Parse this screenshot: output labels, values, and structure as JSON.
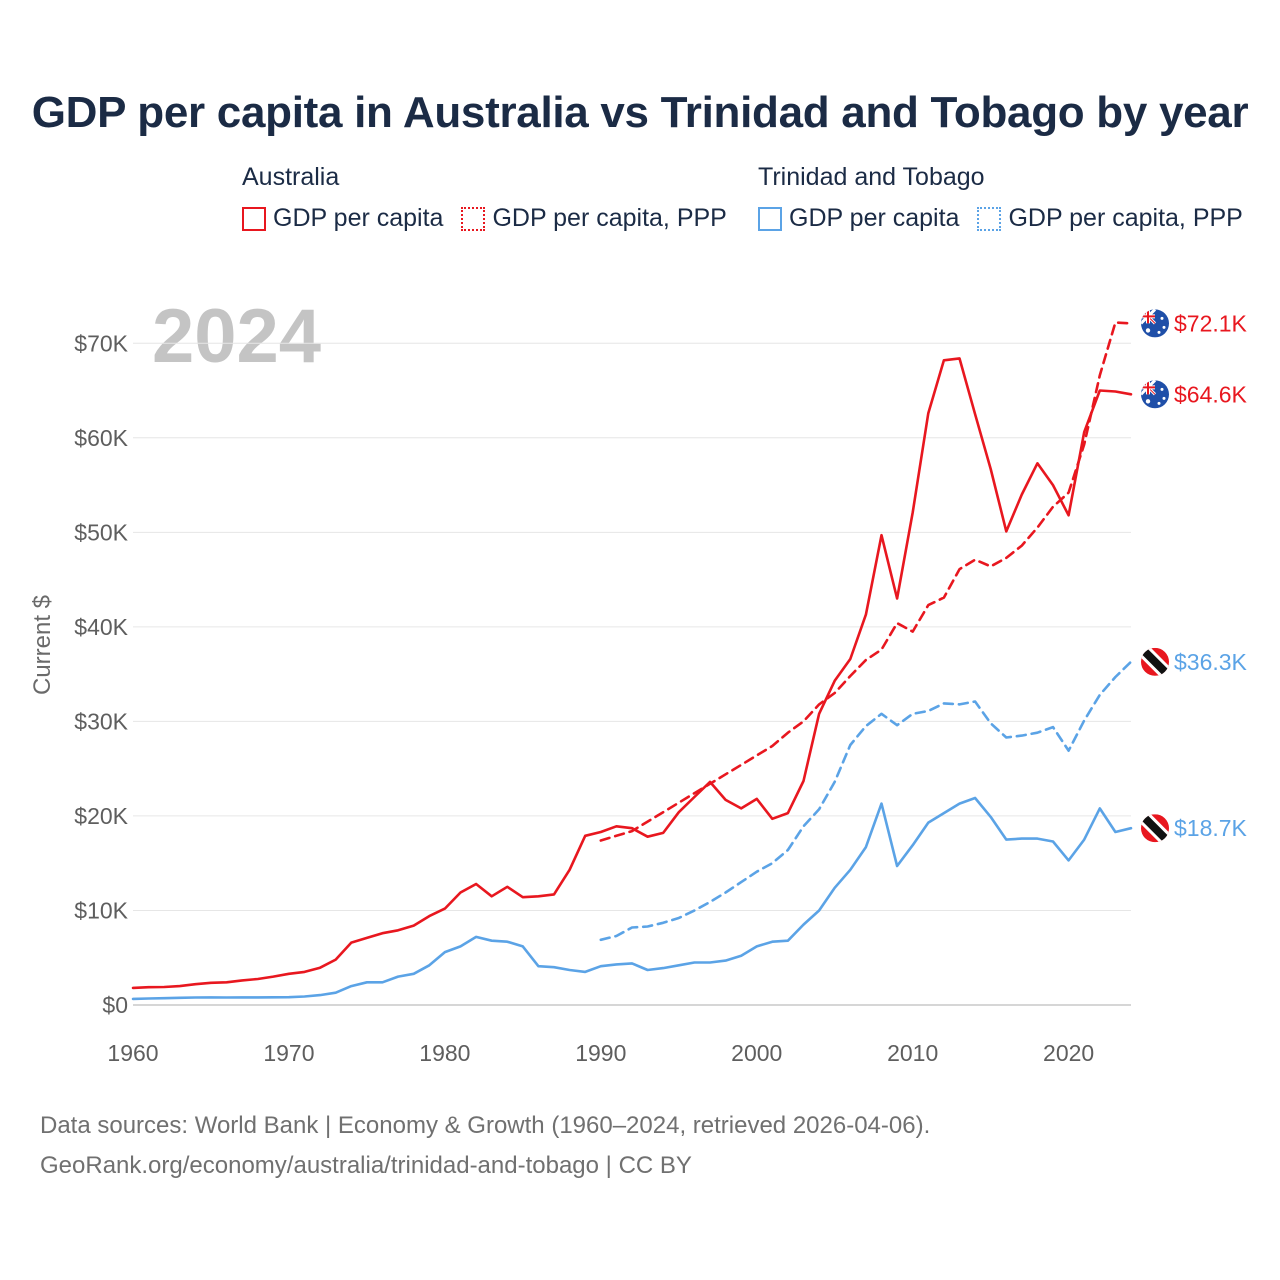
{
  "title": "GDP per capita in Australia vs Trinidad and Tobago by year",
  "year_label": "2024",
  "legend": {
    "groups": [
      {
        "name": "Australia",
        "color": "#e8171f",
        "items": [
          {
            "label": "GDP per capita",
            "style": "solid"
          },
          {
            "label": "GDP per capita, PPP",
            "style": "dotted"
          }
        ]
      },
      {
        "name": "Trinidad and Tobago",
        "color": "#5ba3e6",
        "items": [
          {
            "label": "GDP per capita",
            "style": "solid"
          },
          {
            "label": "GDP per capita, PPP",
            "style": "dotted"
          }
        ]
      }
    ]
  },
  "chart_data": {
    "type": "line",
    "title": "GDP per capita in Australia vs Trinidad and Tobago by year",
    "xlabel": "",
    "ylabel": "Current $",
    "xlim": [
      1960,
      2024
    ],
    "ylim": [
      0,
      75000
    ],
    "x_ticks": [
      1960,
      1970,
      1980,
      1990,
      2000,
      2010,
      2020
    ],
    "x_tick_labels": [
      "1960",
      "1970",
      "1980",
      "1990",
      "2000",
      "2010",
      "2020"
    ],
    "y_ticks": [
      0,
      10000,
      20000,
      30000,
      40000,
      50000,
      60000,
      70000
    ],
    "y_tick_labels": [
      "$0",
      "$10K",
      "$20K",
      "$30K",
      "$40K",
      "$50K",
      "$60K",
      "$70K"
    ],
    "grid": true,
    "series": [
      {
        "name": "Australia GDP per capita",
        "country": "Australia",
        "color": "#e8171f",
        "dash": "solid",
        "flag": "australia",
        "end_label": "$64.6K",
        "start_year": 1960,
        "values": [
          1810,
          1880,
          1900,
          2000,
          2200,
          2350,
          2400,
          2600,
          2750,
          3000,
          3300,
          3500,
          3950,
          4800,
          6600,
          7100,
          7600,
          7900,
          8400,
          9400,
          10200,
          11900,
          12800,
          11500,
          12500,
          11400,
          11500,
          11700,
          14300,
          17900,
          18300,
          18900,
          18700,
          17800,
          18200,
          20400,
          22000,
          23600,
          21700,
          20800,
          21800,
          19700,
          20300,
          23700,
          30800,
          34300,
          36600,
          41300,
          49700,
          43000,
          52100,
          62600,
          68200,
          68400,
          62500,
          56700,
          50100,
          54000,
          57300,
          55000,
          51800,
          60600,
          65000,
          64900,
          64600
        ]
      },
      {
        "name": "Australia GDP per capita, PPP",
        "country": "Australia",
        "color": "#e8171f",
        "dash": "dashed",
        "flag": "australia",
        "end_label": "$72.1K",
        "start_year": 1990,
        "values": [
          17400,
          17900,
          18400,
          19400,
          20400,
          21400,
          22400,
          23400,
          24400,
          25400,
          26400,
          27400,
          28800,
          30000,
          31800,
          33000,
          34800,
          36500,
          37600,
          40400,
          39500,
          42300,
          43100,
          46100,
          47100,
          46400,
          47300,
          48600,
          50500,
          52700,
          54200,
          59300,
          66600,
          72200,
          72100
        ]
      },
      {
        "name": "Trinidad and Tobago GDP per capita",
        "country": "Trinidad and Tobago",
        "color": "#5ba3e6",
        "dash": "solid",
        "flag": "trinidad",
        "end_label": "$18.7K",
        "start_year": 1960,
        "values": [
          640,
          690,
          720,
          760,
          790,
          800,
          790,
          800,
          800,
          810,
          830,
          900,
          1050,
          1300,
          2000,
          2400,
          2400,
          3000,
          3300,
          4200,
          5600,
          6200,
          7200,
          6800,
          6700,
          6200,
          4100,
          4000,
          3700,
          3500,
          4100,
          4300,
          4400,
          3700,
          3900,
          4200,
          4500,
          4500,
          4700,
          5200,
          6200,
          6700,
          6800,
          8500,
          10000,
          12400,
          14300,
          16700,
          21300,
          14700,
          16900,
          19300,
          20300,
          21300,
          21900,
          19900,
          17500,
          17600,
          17600,
          17300,
          15300,
          17500,
          20800,
          18300,
          18700
        ]
      },
      {
        "name": "Trinidad and Tobago GDP per capita, PPP",
        "country": "Trinidad and Tobago",
        "color": "#5ba3e6",
        "dash": "dashed",
        "flag": "trinidad",
        "end_label": "$36.3K",
        "start_year": 1990,
        "values": [
          6900,
          7300,
          8200,
          8300,
          8700,
          9200,
          10000,
          10900,
          11900,
          13000,
          14100,
          15000,
          16400,
          18900,
          20700,
          23600,
          27500,
          29500,
          30800,
          29600,
          30800,
          31100,
          31900,
          31800,
          32100,
          29800,
          28300,
          28500,
          28800,
          29400,
          26900,
          30100,
          32800,
          34700,
          36300
        ]
      }
    ]
  },
  "footer": {
    "line1": "Data sources: World Bank | Economy & Growth (1960–2024, retrieved 2026-04-06).",
    "line2": "GeoRank.org/economy/australia/trinidad-and-tobago | CC BY"
  }
}
